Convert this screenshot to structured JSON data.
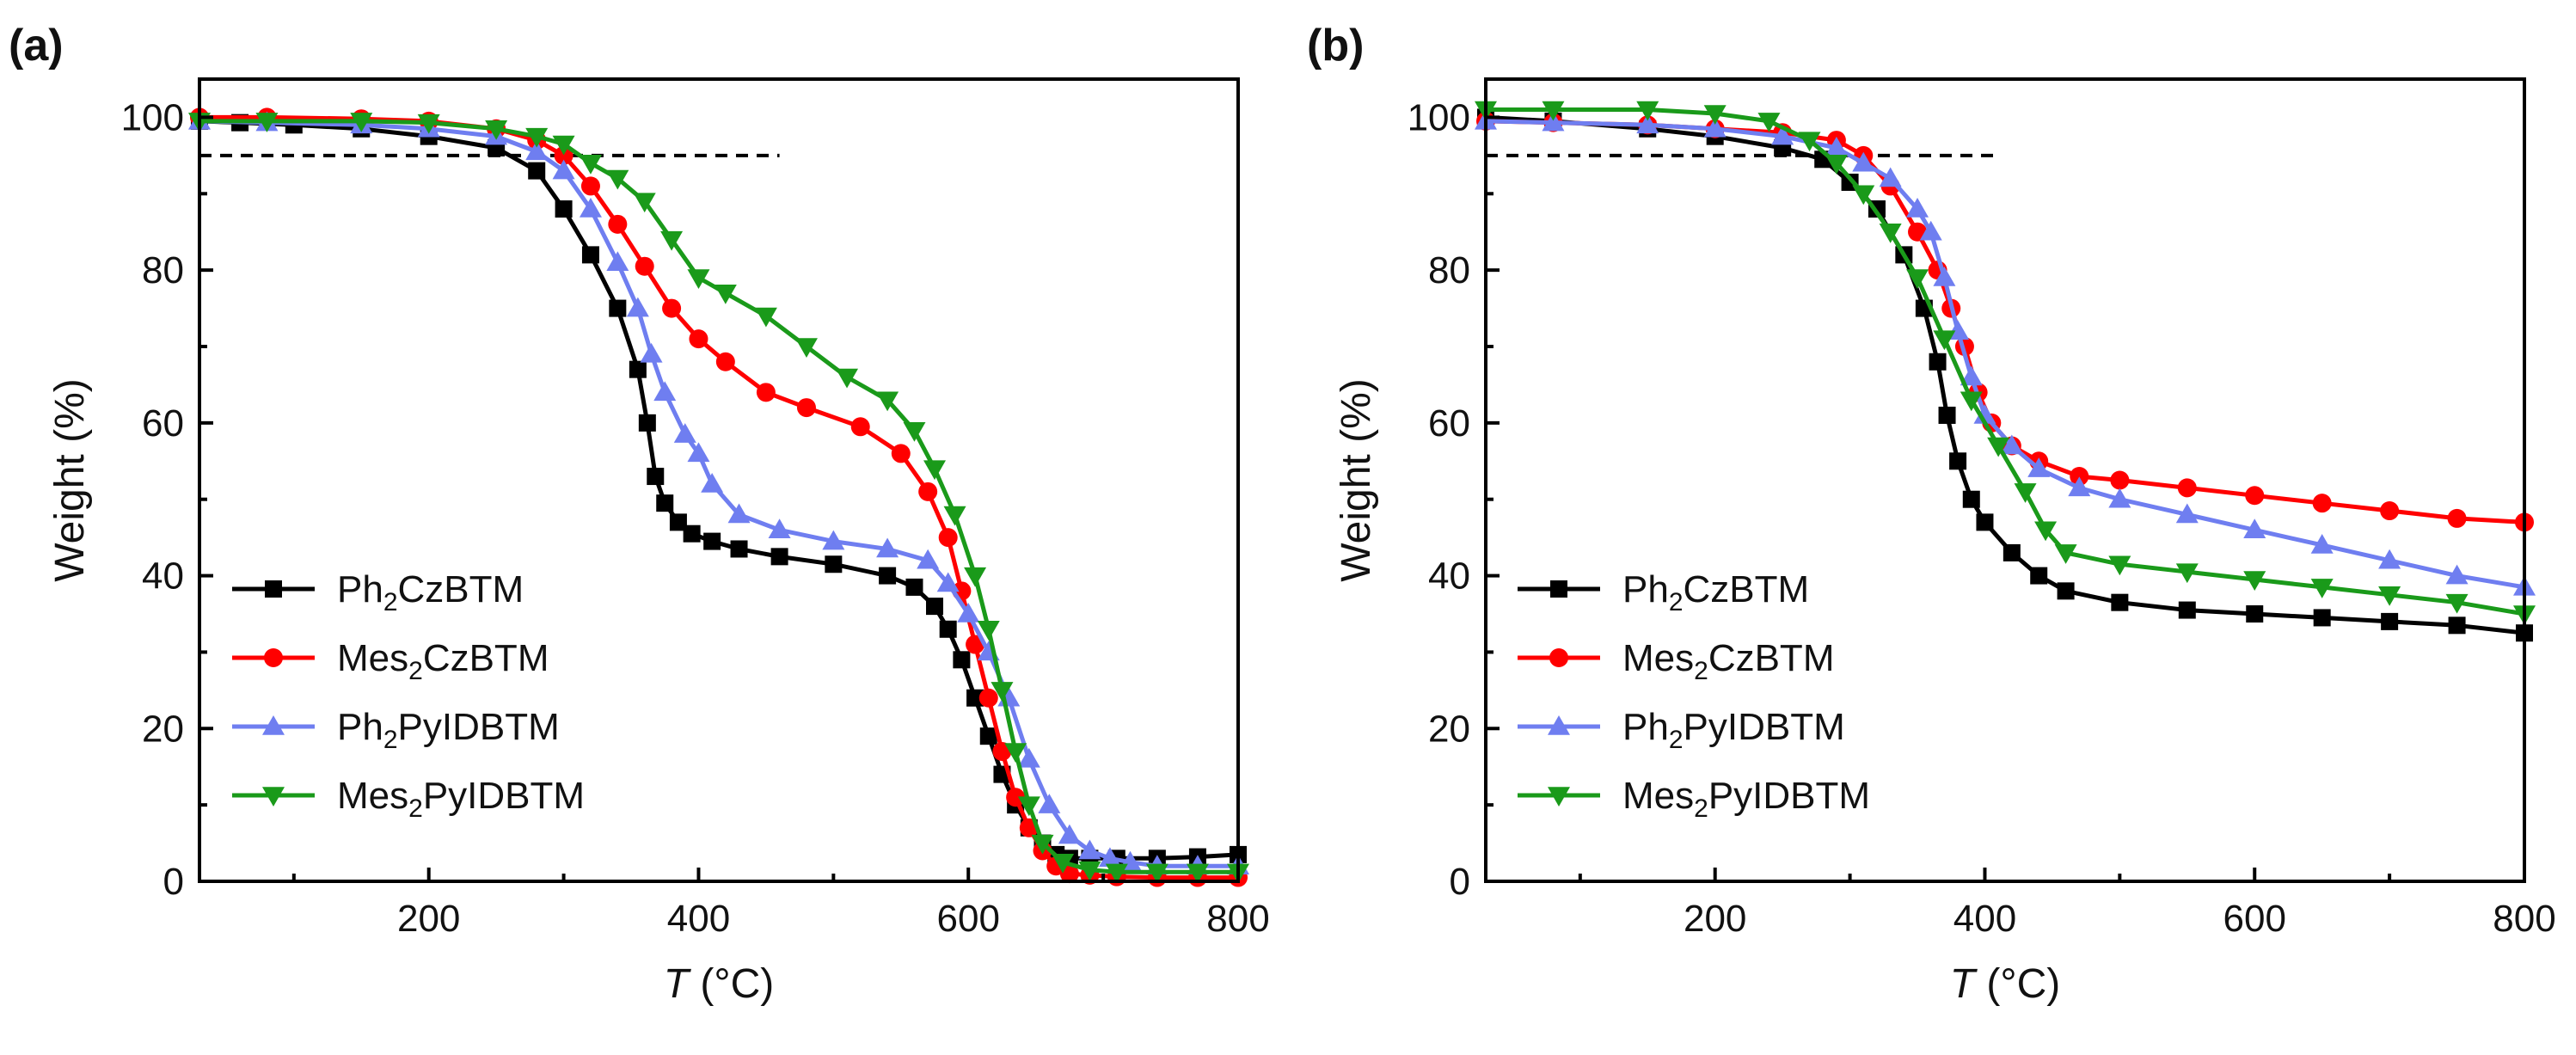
{
  "chart_data": [
    {
      "type": "line",
      "panel_label": "(a)",
      "xlabel_var": "T",
      "xlabel_unit": " (°C)",
      "ylabel": "Weight (%)",
      "xlim": [
        30,
        800
      ],
      "ylim": [
        0,
        105
      ],
      "xticks": [
        200,
        400,
        600,
        800
      ],
      "yticks": [
        0,
        20,
        40,
        60,
        80,
        100
      ],
      "grid": false,
      "legend_position": "lower-left",
      "reference_line": {
        "y": 95,
        "x": [
          30,
          460
        ],
        "style": "dashed"
      },
      "series": [
        {
          "name": "Ph2CzBTM",
          "label_parts": [
            "Ph",
            "2",
            "CzBTM"
          ],
          "color": "#000000",
          "marker": "square",
          "x": [
            30,
            60,
            100,
            150,
            200,
            250,
            280,
            300,
            320,
            340,
            355,
            362,
            368,
            375,
            385,
            395,
            410,
            430,
            460,
            500,
            540,
            560,
            575,
            585,
            595,
            605,
            615,
            625,
            635,
            645,
            655,
            665,
            675,
            690,
            710,
            740,
            770,
            800
          ],
          "y": [
            99.5,
            99.3,
            99,
            98.5,
            97.5,
            96,
            93,
            88,
            82,
            75,
            67,
            60,
            53,
            49.5,
            47,
            45.5,
            44.5,
            43.5,
            42.5,
            41.5,
            40,
            38.5,
            36,
            33,
            29,
            24,
            19,
            14,
            10,
            7,
            5,
            3.5,
            3,
            3,
            3,
            3,
            3.2,
            3.5
          ]
        },
        {
          "name": "Mes2CzBTM",
          "label_parts": [
            "Mes",
            "2",
            "CzBTM"
          ],
          "color": "#ff0000",
          "marker": "circle",
          "x": [
            30,
            80,
            150,
            200,
            250,
            280,
            300,
            320,
            340,
            360,
            380,
            400,
            420,
            450,
            480,
            520,
            550,
            570,
            585,
            595,
            605,
            615,
            625,
            635,
            645,
            655,
            665,
            675,
            690,
            710,
            740,
            770,
            800
          ],
          "y": [
            100,
            100,
            99.8,
            99.5,
            98.5,
            97,
            95,
            91,
            86,
            80.5,
            75,
            71,
            68,
            64,
            62,
            59.5,
            56,
            51,
            45,
            38,
            31,
            24,
            17,
            11,
            7,
            4,
            2,
            1,
            0.8,
            0.6,
            0.5,
            0.5,
            0.5
          ]
        },
        {
          "name": "Ph2PyIDBTM",
          "label_parts": [
            "Ph",
            "2",
            "PyIDBTM"
          ],
          "color": "#6f7ef0",
          "marker": "triangle-up",
          "x": [
            30,
            80,
            150,
            200,
            250,
            280,
            300,
            320,
            340,
            355,
            365,
            375,
            390,
            400,
            410,
            430,
            460,
            500,
            540,
            570,
            585,
            600,
            615,
            630,
            645,
            660,
            675,
            690,
            705,
            720,
            740,
            770,
            800
          ],
          "y": [
            99.5,
            99.3,
            99,
            98.5,
            97.5,
            95.5,
            93,
            88,
            81,
            75,
            69,
            64,
            58.5,
            56,
            52,
            48,
            46,
            44.5,
            43.5,
            42,
            39,
            35,
            30,
            24,
            16,
            10,
            6,
            4,
            3,
            2.5,
            2,
            2,
            2
          ]
        },
        {
          "name": "Mes2PyIDBTM",
          "label_parts": [
            "Mes",
            "2",
            "PyIDBTM"
          ],
          "color": "#1a9a1a",
          "marker": "triangle-down",
          "x": [
            30,
            80,
            150,
            200,
            250,
            280,
            300,
            320,
            340,
            360,
            380,
            400,
            420,
            450,
            480,
            510,
            540,
            560,
            575,
            590,
            605,
            615,
            625,
            635,
            645,
            655,
            670,
            690,
            710,
            740,
            770,
            800
          ],
          "y": [
            99.5,
            99.5,
            99.5,
            99.3,
            98.5,
            97.5,
            96.5,
            94,
            92,
            89,
            84,
            79,
            77,
            74,
            70,
            66,
            63,
            59,
            54,
            48,
            40,
            33,
            25,
            17,
            10,
            5,
            2.5,
            1.5,
            1.2,
            1.2,
            1.2,
            1.2
          ]
        }
      ]
    },
    {
      "type": "line",
      "panel_label": "(b)",
      "xlabel_var": "T",
      "xlabel_unit": " (°C)",
      "ylabel": "Weight (%)",
      "xlim": [
        30,
        800
      ],
      "ylim": [
        0,
        105
      ],
      "xticks": [
        200,
        400,
        600,
        800
      ],
      "yticks": [
        0,
        20,
        40,
        60,
        80,
        100
      ],
      "grid": false,
      "legend_position": "lower-left",
      "reference_line": {
        "y": 95,
        "x": [
          30,
          410
        ],
        "style": "dashed"
      },
      "series": [
        {
          "name": "Ph2CzBTM",
          "label_parts": [
            "Ph",
            "2",
            "CzBTM"
          ],
          "color": "#000000",
          "marker": "square",
          "x": [
            30,
            80,
            150,
            200,
            250,
            280,
            300,
            320,
            340,
            355,
            365,
            372,
            380,
            390,
            400,
            420,
            440,
            460,
            500,
            550,
            600,
            650,
            700,
            750,
            800
          ],
          "y": [
            100,
            99.5,
            98.5,
            97.5,
            96,
            94.5,
            91.5,
            88,
            82,
            75,
            68,
            61,
            55,
            50,
            47,
            43,
            40,
            38,
            36.5,
            35.5,
            35,
            34.5,
            34,
            33.5,
            32.5
          ]
        },
        {
          "name": "Mes2CzBTM",
          "label_parts": [
            "Mes",
            "2",
            "CzBTM"
          ],
          "color": "#ff0000",
          "marker": "circle",
          "x": [
            30,
            80,
            150,
            200,
            250,
            290,
            310,
            330,
            350,
            365,
            375,
            385,
            395,
            405,
            420,
            440,
            470,
            500,
            550,
            600,
            650,
            700,
            750,
            800
          ],
          "y": [
            99.5,
            99.3,
            99,
            98.5,
            98,
            97,
            95,
            91,
            85,
            80,
            75,
            70,
            64,
            60,
            57,
            55,
            53,
            52.5,
            51.5,
            50.5,
            49.5,
            48.5,
            47.5,
            47
          ]
        },
        {
          "name": "Ph2PyIDBTM",
          "label_parts": [
            "Ph",
            "2",
            "PyIDBTM"
          ],
          "color": "#6f7ef0",
          "marker": "triangle-up",
          "x": [
            30,
            80,
            150,
            200,
            250,
            290,
            310,
            330,
            350,
            360,
            370,
            380,
            390,
            400,
            420,
            440,
            470,
            500,
            550,
            600,
            650,
            700,
            750,
            800
          ],
          "y": [
            99.5,
            99.3,
            99,
            98.5,
            97.5,
            96,
            94,
            92,
            88,
            85,
            79,
            72,
            66,
            61,
            57,
            54,
            51.5,
            50,
            48,
            46,
            44,
            42,
            40,
            38.5
          ]
        },
        {
          "name": "Mes2PyIDBTM",
          "label_parts": [
            "Mes",
            "2",
            "PyIDBTM"
          ],
          "color": "#1a9a1a",
          "marker": "triangle-down",
          "x": [
            30,
            80,
            150,
            200,
            240,
            270,
            290,
            310,
            330,
            350,
            370,
            390,
            410,
            430,
            445,
            460,
            500,
            550,
            600,
            650,
            700,
            750,
            800
          ],
          "y": [
            101,
            101,
            101,
            100.5,
            99.5,
            97,
            94,
            90,
            85,
            79,
            71,
            63,
            57,
            51,
            46,
            43,
            41.5,
            40.5,
            39.5,
            38.5,
            37.5,
            36.5,
            35
          ]
        }
      ]
    }
  ]
}
